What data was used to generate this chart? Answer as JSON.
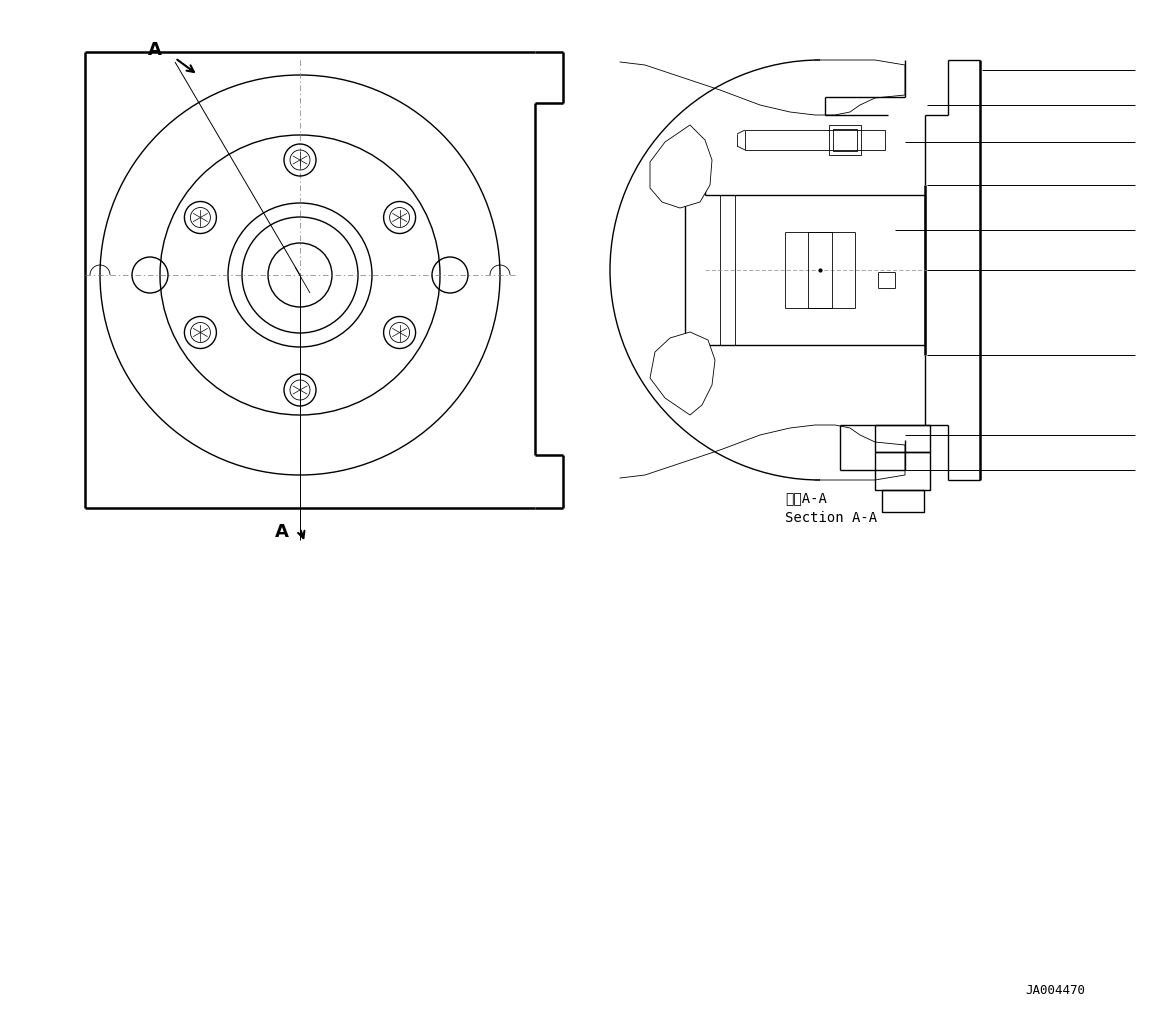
{
  "bg_color": "#ffffff",
  "line_color": "#000000",
  "fig_width": 11.63,
  "fig_height": 10.28,
  "title_ja": "断面A-A",
  "title_en": "Section A-A",
  "part_number": "JA004470"
}
